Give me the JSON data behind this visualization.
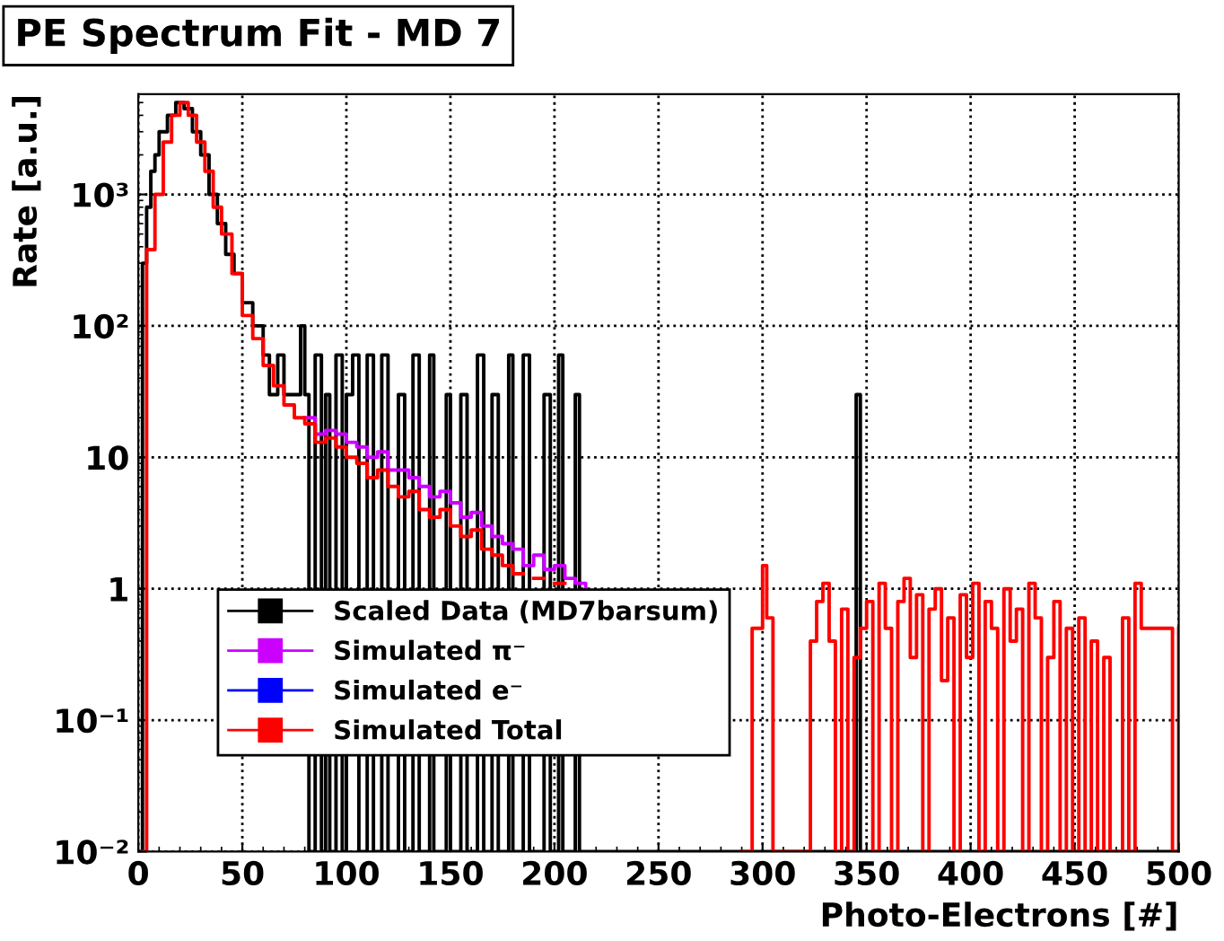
{
  "chart_data": {
    "type": "step",
    "title": "PE Spectrum Fit - MD 7",
    "xlabel": "Photo-Electrons [#]",
    "ylabel": "Rate [a.u.]",
    "log": "y",
    "xlim": [
      0,
      500
    ],
    "ylim": [
      0.01,
      5800
    ],
    "xticks": [
      0,
      50,
      100,
      150,
      200,
      250,
      300,
      350,
      400,
      450,
      500
    ],
    "yticks": [
      {
        "value": 0.01,
        "label": "10⁻²"
      },
      {
        "value": 0.1,
        "label": "10⁻¹"
      },
      1,
      10,
      {
        "value": 100,
        "label": "10²"
      },
      {
        "value": 1000,
        "label": "10³"
      }
    ],
    "grid": true,
    "legend": "bottom left",
    "series": [
      {
        "name": "Scaled Data (MD7barsum)",
        "color": "#000000",
        "x": [
          1,
          2,
          4,
          6,
          8,
          10,
          14,
          18,
          22,
          26,
          30,
          34,
          38,
          42,
          46,
          50,
          55,
          60,
          63,
          67,
          70,
          75,
          78,
          80,
          82,
          85,
          88,
          90,
          92,
          95,
          98,
          100,
          103,
          106,
          110,
          113,
          117,
          120,
          125,
          128,
          132,
          135,
          140,
          142,
          148,
          150,
          155,
          158,
          163,
          166,
          170,
          173,
          178,
          180,
          185,
          188,
          195,
          198,
          202,
          204,
          210,
          212,
          220,
          343,
          345,
          347,
          500
        ],
        "values": [
          0.01,
          300,
          800,
          1500,
          2000,
          3000,
          4000,
          5000,
          4500,
          3000,
          2000,
          1000,
          600,
          350,
          250,
          150,
          100,
          60,
          30,
          60,
          30,
          30,
          100,
          30,
          0.01,
          60,
          0.01,
          30,
          0.01,
          60,
          0.01,
          30,
          60,
          0.01,
          60,
          0.01,
          60,
          0.01,
          30,
          0.01,
          60,
          0.01,
          60,
          0.01,
          30,
          0.01,
          30,
          0.01,
          60,
          0.01,
          30,
          0.01,
          60,
          0.01,
          60,
          0.01,
          30,
          0.01,
          60,
          0.01,
          30,
          0.01,
          0.01,
          0.01,
          30,
          0.01,
          0.01
        ]
      },
      {
        "name": "Simulated π⁻",
        "color": "#cc00ff",
        "x": [
          80,
          85,
          90,
          95,
          100,
          105,
          110,
          115,
          120,
          125,
          130,
          135,
          140,
          145,
          150,
          155,
          160,
          165,
          170,
          175,
          180,
          185,
          190,
          195,
          200,
          205,
          210,
          215
        ],
        "values": [
          20,
          15,
          16,
          15,
          13,
          12,
          10,
          11,
          8,
          8,
          7,
          6,
          5,
          5.5,
          4.5,
          3.5,
          3.8,
          3,
          2.5,
          2.2,
          2,
          1.5,
          1.8,
          1.4,
          1.5,
          1.2,
          1.1,
          1
        ]
      },
      {
        "name": "Simulated e⁻",
        "color": "#0000ff"
      },
      {
        "name": "Simulated Total",
        "color": "#ff0000",
        "x": [
          2,
          4,
          8,
          12,
          16,
          20,
          24,
          28,
          32,
          36,
          40,
          45,
          50,
          55,
          60,
          65,
          70,
          75,
          80,
          85,
          90,
          95,
          100,
          105,
          110,
          115,
          120,
          125,
          130,
          135,
          140,
          145,
          150,
          155,
          160,
          165,
          170,
          175,
          180,
          185,
          190,
          195,
          200,
          205,
          210,
          215,
          220,
          225,
          230,
          235,
          240,
          245,
          250,
          255,
          260,
          265,
          270,
          275,
          280,
          285,
          290,
          295,
          300,
          302,
          305,
          310,
          320,
          323,
          326,
          329,
          332,
          335,
          338,
          341,
          344,
          347,
          350,
          353,
          356,
          359,
          362,
          365,
          368,
          371,
          374,
          377,
          380,
          383,
          386,
          389,
          392,
          395,
          398,
          401,
          404,
          407,
          410,
          413,
          416,
          419,
          422,
          425,
          428,
          431,
          434,
          437,
          440,
          443,
          446,
          449,
          452,
          455,
          458,
          461,
          464,
          467,
          470,
          473,
          476,
          479,
          482,
          497,
          500
        ],
        "values": [
          0.01,
          380,
          1000,
          2500,
          4000,
          5000,
          4000,
          2500,
          1500,
          800,
          500,
          250,
          120,
          80,
          50,
          35,
          25,
          20,
          18,
          13,
          14,
          12,
          10,
          9,
          7,
          8,
          6,
          5,
          5.5,
          4,
          3.5,
          4,
          3,
          2.5,
          2.8,
          2,
          1.8,
          1.5,
          1.3,
          null,
          1.2,
          null,
          1.1,
          null,
          null,
          null,
          null,
          null,
          null,
          null,
          null,
          null,
          null,
          null,
          null,
          null,
          null,
          null,
          null,
          null,
          0.01,
          0.5,
          1.5,
          0.6,
          0.01,
          0.01,
          0.01,
          0.4,
          0.8,
          1.1,
          0.4,
          0.01,
          0.7,
          0.01,
          0.3,
          0.5,
          0.8,
          0.01,
          1.1,
          0.5,
          0.01,
          0.8,
          1.2,
          0.3,
          0.9,
          0.01,
          0.7,
          1,
          0.2,
          0.6,
          0.01,
          0.9,
          0.3,
          1.1,
          0.01,
          0.8,
          0.5,
          0.01,
          1,
          0.4,
          0.7,
          0.01,
          1.1,
          0.6,
          0.01,
          0.3,
          0.8,
          0.01,
          0.5,
          0.01,
          0.6,
          0.01,
          0.4,
          0.01,
          0.3,
          0.01,
          0.01,
          0.6,
          0.01,
          1.1,
          0.5,
          0.01,
          0.5
        ]
      }
    ]
  }
}
